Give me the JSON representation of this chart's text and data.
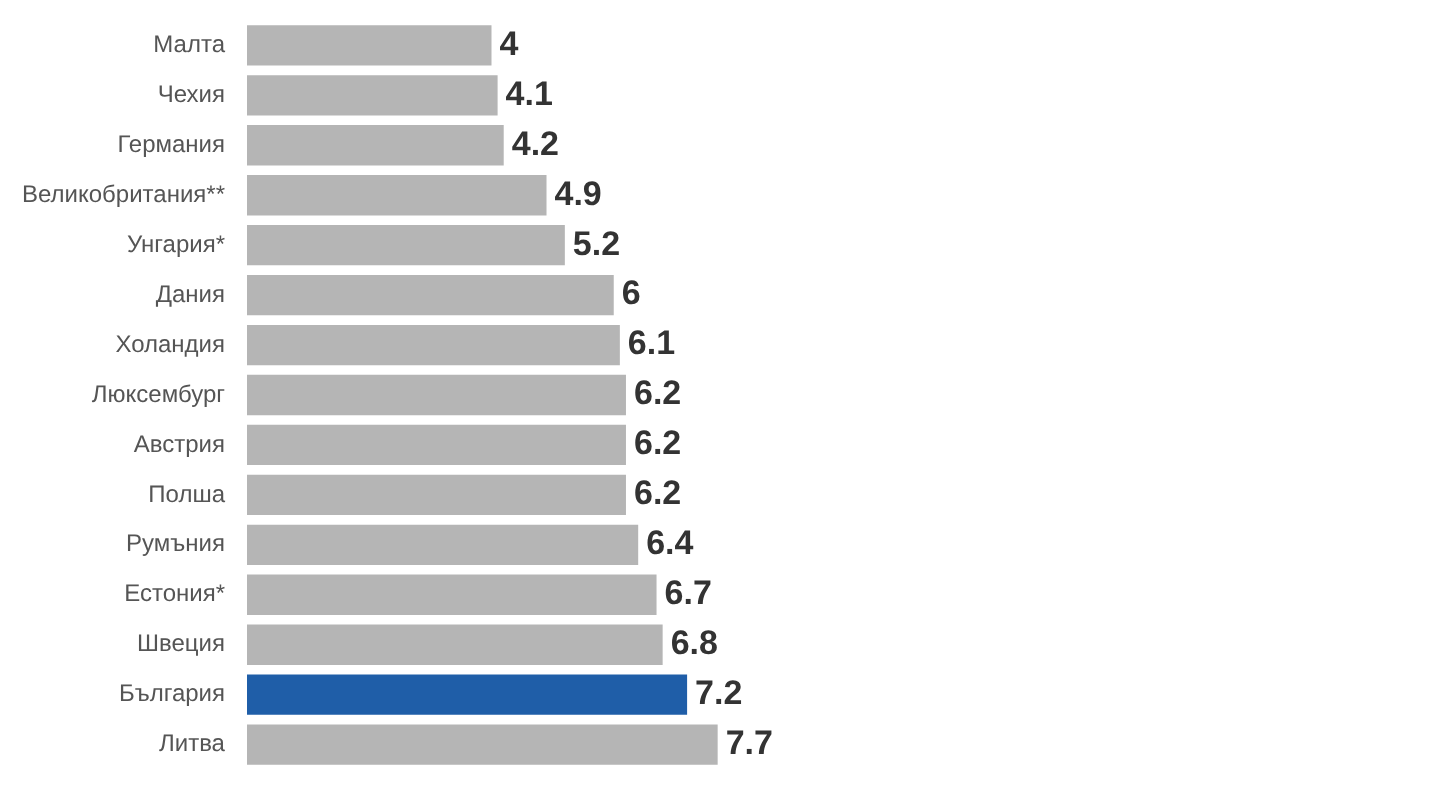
{
  "chart_data": {
    "type": "bar",
    "orientation": "horizontal",
    "data_labels": true,
    "categories": [
      "Малта",
      "Чехия",
      "Германия",
      "Великобритания**",
      "Унгария*",
      "Дания",
      "Холандия",
      "Люксембург",
      "Австрия",
      "Полша",
      "Румъния",
      "Естония*",
      "Швеция",
      "България",
      "Литва"
    ],
    "values": [
      4,
      4.1,
      4.2,
      4.9,
      5.2,
      6,
      6.1,
      6.2,
      6.2,
      6.2,
      6.4,
      6.7,
      6.8,
      7.2,
      7.7
    ],
    "colors": [
      "#b5b5b5",
      "#b5b5b5",
      "#b5b5b5",
      "#b5b5b5",
      "#b5b5b5",
      "#b5b5b5",
      "#b5b5b5",
      "#b5b5b5",
      "#b5b5b5",
      "#b5b5b5",
      "#b5b5b5",
      "#b5b5b5",
      "#b5b5b5",
      "#1f5ea8",
      "#b5b5b5"
    ]
  }
}
